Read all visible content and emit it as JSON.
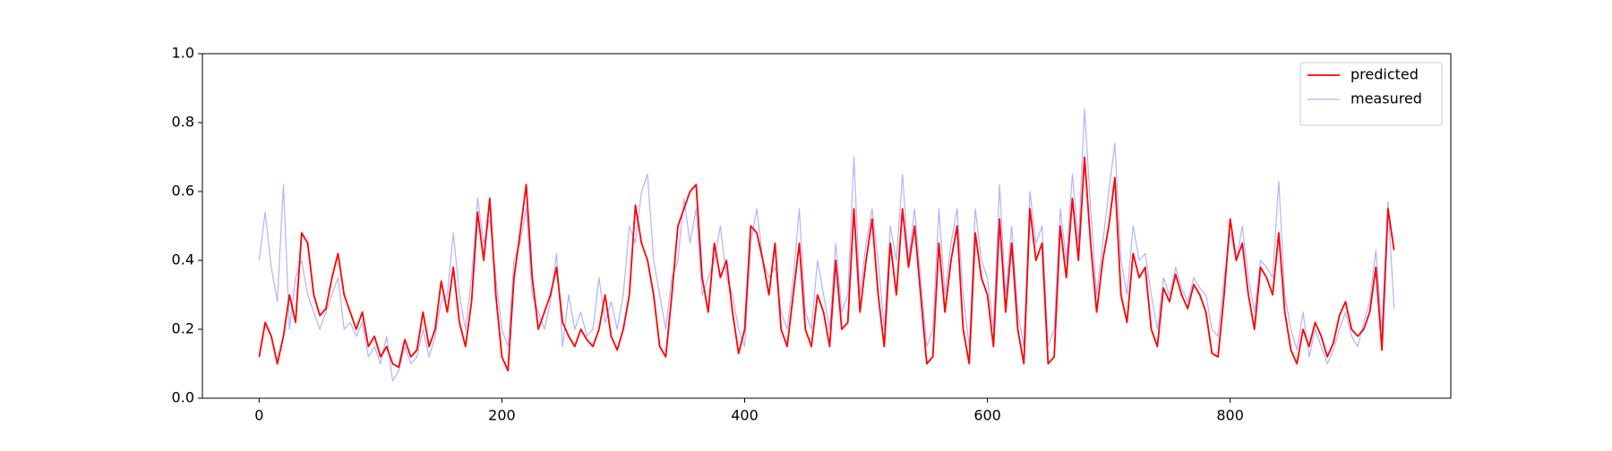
{
  "chart_data": {
    "type": "line",
    "x": [
      0,
      5,
      10,
      15,
      20,
      25,
      30,
      35,
      40,
      45,
      50,
      55,
      60,
      65,
      70,
      75,
      80,
      85,
      90,
      95,
      100,
      105,
      110,
      115,
      120,
      125,
      130,
      135,
      140,
      145,
      150,
      155,
      160,
      165,
      170,
      175,
      180,
      185,
      190,
      195,
      200,
      205,
      210,
      215,
      220,
      225,
      230,
      235,
      240,
      245,
      250,
      255,
      260,
      265,
      270,
      275,
      280,
      285,
      290,
      295,
      300,
      305,
      310,
      315,
      320,
      325,
      330,
      335,
      340,
      345,
      350,
      355,
      360,
      365,
      370,
      375,
      380,
      385,
      390,
      395,
      400,
      405,
      410,
      415,
      420,
      425,
      430,
      435,
      440,
      445,
      450,
      455,
      460,
      465,
      470,
      475,
      480,
      485,
      490,
      495,
      500,
      505,
      510,
      515,
      520,
      525,
      530,
      535,
      540,
      545,
      550,
      555,
      560,
      565,
      570,
      575,
      580,
      585,
      590,
      595,
      600,
      605,
      610,
      615,
      620,
      625,
      630,
      635,
      640,
      645,
      650,
      655,
      660,
      665,
      670,
      675,
      680,
      685,
      690,
      695,
      700,
      705,
      710,
      715,
      720,
      725,
      730,
      735,
      740,
      745,
      750,
      755,
      760,
      765,
      770,
      775,
      780,
      785,
      790,
      795,
      800,
      805,
      810,
      815,
      820,
      825,
      830,
      835,
      840,
      845,
      850,
      855,
      860,
      865,
      870,
      875,
      880,
      885,
      890,
      895,
      900,
      905,
      910,
      915,
      920,
      925,
      930,
      935
    ],
    "series": [
      {
        "name": "predicted",
        "color": "#ff0000",
        "opacity": 1,
        "values": [
          0.12,
          0.22,
          0.18,
          0.1,
          0.18,
          0.3,
          0.22,
          0.48,
          0.45,
          0.3,
          0.24,
          0.26,
          0.35,
          0.42,
          0.3,
          0.25,
          0.2,
          0.25,
          0.15,
          0.18,
          0.12,
          0.15,
          0.1,
          0.09,
          0.17,
          0.12,
          0.14,
          0.25,
          0.15,
          0.2,
          0.34,
          0.25,
          0.38,
          0.22,
          0.15,
          0.28,
          0.54,
          0.4,
          0.58,
          0.3,
          0.12,
          0.08,
          0.35,
          0.48,
          0.62,
          0.35,
          0.2,
          0.25,
          0.3,
          0.38,
          0.22,
          0.18,
          0.15,
          0.2,
          0.17,
          0.15,
          0.2,
          0.3,
          0.18,
          0.14,
          0.2,
          0.3,
          0.56,
          0.45,
          0.4,
          0.3,
          0.15,
          0.12,
          0.3,
          0.5,
          0.55,
          0.6,
          0.62,
          0.35,
          0.25,
          0.45,
          0.35,
          0.4,
          0.25,
          0.13,
          0.2,
          0.5,
          0.48,
          0.4,
          0.3,
          0.45,
          0.2,
          0.15,
          0.3,
          0.45,
          0.2,
          0.15,
          0.3,
          0.25,
          0.15,
          0.4,
          0.2,
          0.22,
          0.55,
          0.25,
          0.4,
          0.52,
          0.3,
          0.15,
          0.45,
          0.3,
          0.55,
          0.38,
          0.5,
          0.3,
          0.1,
          0.12,
          0.45,
          0.25,
          0.4,
          0.5,
          0.2,
          0.1,
          0.48,
          0.35,
          0.3,
          0.15,
          0.52,
          0.25,
          0.45,
          0.2,
          0.1,
          0.55,
          0.4,
          0.45,
          0.1,
          0.12,
          0.5,
          0.35,
          0.58,
          0.4,
          0.7,
          0.45,
          0.25,
          0.4,
          0.5,
          0.64,
          0.3,
          0.22,
          0.42,
          0.35,
          0.38,
          0.2,
          0.15,
          0.32,
          0.28,
          0.36,
          0.3,
          0.26,
          0.33,
          0.3,
          0.25,
          0.13,
          0.12,
          0.3,
          0.52,
          0.4,
          0.45,
          0.3,
          0.2,
          0.38,
          0.35,
          0.3,
          0.48,
          0.25,
          0.14,
          0.1,
          0.2,
          0.15,
          0.22,
          0.18,
          0.12,
          0.16,
          0.24,
          0.28,
          0.2,
          0.18,
          0.2,
          0.25,
          0.38,
          0.14,
          0.55,
          0.43
        ]
      },
      {
        "name": "measured",
        "color": "#0000ff",
        "opacity": 0.3,
        "values": [
          0.4,
          0.54,
          0.38,
          0.28,
          0.62,
          0.2,
          0.35,
          0.4,
          0.3,
          0.25,
          0.2,
          0.25,
          0.3,
          0.35,
          0.2,
          0.22,
          0.18,
          0.22,
          0.12,
          0.15,
          0.1,
          0.18,
          0.05,
          0.08,
          0.15,
          0.1,
          0.12,
          0.2,
          0.12,
          0.18,
          0.28,
          0.3,
          0.48,
          0.3,
          0.2,
          0.35,
          0.58,
          0.45,
          0.52,
          0.35,
          0.2,
          0.15,
          0.4,
          0.45,
          0.55,
          0.3,
          0.25,
          0.2,
          0.28,
          0.42,
          0.15,
          0.3,
          0.2,
          0.25,
          0.18,
          0.2,
          0.35,
          0.22,
          0.28,
          0.2,
          0.3,
          0.5,
          0.45,
          0.6,
          0.65,
          0.4,
          0.3,
          0.2,
          0.35,
          0.4,
          0.58,
          0.45,
          0.55,
          0.3,
          0.35,
          0.4,
          0.5,
          0.35,
          0.3,
          0.2,
          0.15,
          0.45,
          0.55,
          0.4,
          0.35,
          0.38,
          0.25,
          0.2,
          0.35,
          0.55,
          0.25,
          0.2,
          0.4,
          0.3,
          0.2,
          0.45,
          0.25,
          0.3,
          0.7,
          0.3,
          0.45,
          0.55,
          0.4,
          0.2,
          0.5,
          0.4,
          0.65,
          0.4,
          0.55,
          0.35,
          0.15,
          0.2,
          0.55,
          0.3,
          0.45,
          0.55,
          0.3,
          0.15,
          0.55,
          0.4,
          0.35,
          0.2,
          0.62,
          0.3,
          0.5,
          0.25,
          0.15,
          0.6,
          0.45,
          0.5,
          0.15,
          0.2,
          0.55,
          0.4,
          0.65,
          0.45,
          0.84,
          0.55,
          0.3,
          0.45,
          0.6,
          0.74,
          0.4,
          0.3,
          0.5,
          0.4,
          0.42,
          0.3,
          0.2,
          0.35,
          0.3,
          0.38,
          0.32,
          0.28,
          0.35,
          0.32,
          0.3,
          0.2,
          0.18,
          0.35,
          0.48,
          0.4,
          0.5,
          0.35,
          0.25,
          0.4,
          0.38,
          0.35,
          0.63,
          0.3,
          0.2,
          0.14,
          0.25,
          0.12,
          0.2,
          0.15,
          0.1,
          0.14,
          0.2,
          0.25,
          0.18,
          0.15,
          0.22,
          0.28,
          0.43,
          0.2,
          0.57,
          0.26
        ]
      }
    ],
    "xlim": [
      -46.75,
      981.75
    ],
    "xticks": [
      0,
      200,
      400,
      600,
      800
    ],
    "ylim": [
      0,
      1
    ],
    "yticks": [
      {
        "value": 0,
        "label": "0.0"
      },
      0.2,
      0.4,
      0.6,
      0.8,
      {
        "value": 1,
        "label": "1.0"
      }
    ],
    "legend": "upper right"
  }
}
